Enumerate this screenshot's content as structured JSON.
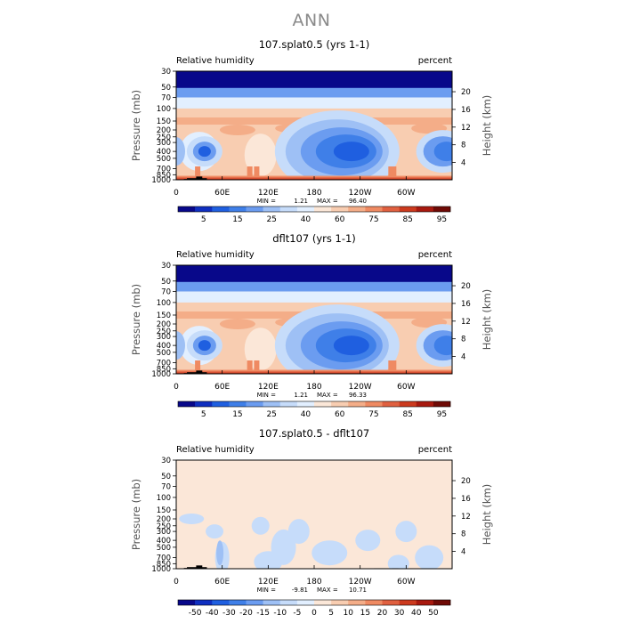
{
  "page": {
    "title": "ANN"
  },
  "colors": {
    "rh_levels": [
      "#08088a",
      "#0f2fc0",
      "#1f5fe0",
      "#3f7fe8",
      "#6b9cf0",
      "#9ec0f5",
      "#c6dcfa",
      "#e2efff",
      "#fbe7d8",
      "#f8cdb1",
      "#f4ad88",
      "#ef8a62",
      "#e06040",
      "#cc3a1e",
      "#a8190f",
      "#6f0a06"
    ],
    "diff_levels": [
      "#08088a",
      "#0f2fc0",
      "#1f5fe0",
      "#3f7fe8",
      "#6b9cf0",
      "#9ec0f5",
      "#c6dcfa",
      "#e2efff",
      "#fbe7d8",
      "#f8cdb1",
      "#f4ad88",
      "#ef8a62",
      "#e06040",
      "#cc3a1e",
      "#a8190f",
      "#6f0a06"
    ],
    "topography": "#000000"
  },
  "chart_data": [
    {
      "type": "heatmap",
      "title": "107.splat0.5 (yrs 1-1)",
      "left_label": "Relative humidity",
      "right_label": "percent",
      "ylabel": "Pressure (mb)",
      "y2label": "Height (km)",
      "x_ticks": [
        "0",
        "60E",
        "120E",
        "180",
        "120W",
        "60W"
      ],
      "y_ticks": [
        "30",
        "50",
        "70",
        "100",
        "150",
        "200",
        "250",
        "300",
        "400",
        "500",
        "700",
        "850",
        "1000"
      ],
      "y2_ticks": [
        "20",
        "16",
        "12",
        "8",
        "4"
      ],
      "stats": {
        "min_label": "MIN =",
        "min": "1.21",
        "max_label": "MAX =",
        "max": "96.40"
      },
      "colorbar_labels": [
        "5",
        "15",
        "25",
        "40",
        "60",
        "75",
        "85",
        "95"
      ]
    },
    {
      "type": "heatmap",
      "title": "dflt107 (yrs 1-1)",
      "left_label": "Relative humidity",
      "right_label": "percent",
      "ylabel": "Pressure (mb)",
      "y2label": "Height (km)",
      "x_ticks": [
        "0",
        "60E",
        "120E",
        "180",
        "120W",
        "60W"
      ],
      "y_ticks": [
        "30",
        "50",
        "70",
        "100",
        "150",
        "200",
        "250",
        "300",
        "400",
        "500",
        "700",
        "850",
        "1000"
      ],
      "y2_ticks": [
        "20",
        "16",
        "12",
        "8",
        "4"
      ],
      "stats": {
        "min_label": "MIN =",
        "min": "1.21",
        "max_label": "MAX =",
        "max": "96.33"
      },
      "colorbar_labels": [
        "5",
        "15",
        "25",
        "40",
        "60",
        "75",
        "85",
        "95"
      ]
    },
    {
      "type": "heatmap",
      "title": "107.splat0.5 - dflt107",
      "left_label": "Relative humidity",
      "right_label": "percent",
      "ylabel": "Pressure (mb)",
      "y2label": "Height (km)",
      "x_ticks": [
        "0",
        "60E",
        "120E",
        "180",
        "120W",
        "60W"
      ],
      "y_ticks": [
        "30",
        "50",
        "70",
        "100",
        "150",
        "200",
        "250",
        "300",
        "400",
        "500",
        "700",
        "850",
        "1000"
      ],
      "y2_ticks": [
        "20",
        "16",
        "12",
        "8",
        "4"
      ],
      "stats": {
        "min_label": "MIN =",
        "min": "-9.81",
        "max_label": "MAX =",
        "max": "10.71"
      },
      "colorbar_labels": [
        "-50",
        "-40",
        "-30",
        "-20",
        "-15",
        "-10",
        "-5",
        "0",
        "5",
        "10",
        "15",
        "20",
        "30",
        "40",
        "50"
      ]
    }
  ]
}
